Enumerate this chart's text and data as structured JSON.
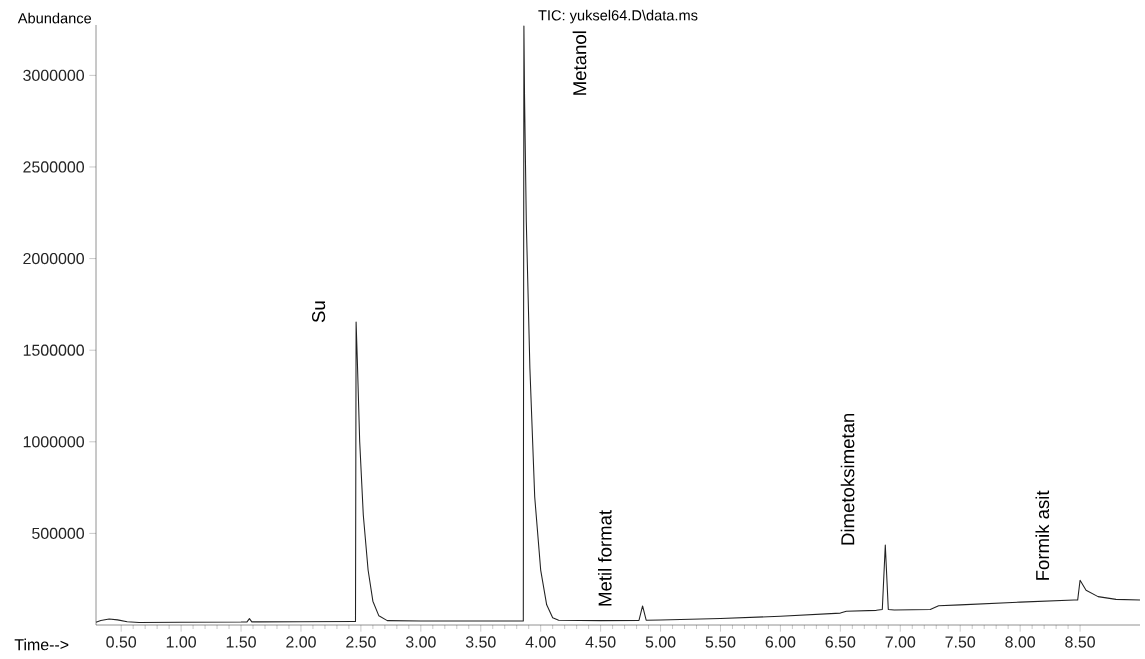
{
  "chart_data": {
    "type": "line",
    "title": "TIC: yuksel64.D\\data.ms",
    "xlabel": "Time-->",
    "ylabel": "Abundance",
    "x": [
      0.29,
      0.33,
      0.4,
      0.47,
      0.55,
      0.65,
      1.0,
      1.5,
      1.55,
      1.57,
      1.59,
      1.65,
      2.0,
      2.45,
      2.455,
      2.46,
      2.47,
      2.49,
      2.52,
      2.56,
      2.6,
      2.65,
      2.72,
      3.0,
      3.5,
      3.85,
      3.855,
      3.86,
      3.865,
      3.88,
      3.91,
      3.95,
      4.0,
      4.05,
      4.1,
      4.15,
      4.5,
      4.82,
      4.85,
      4.88,
      5.0,
      5.5,
      6.0,
      6.5,
      6.55,
      6.8,
      6.85,
      6.875,
      6.9,
      6.95,
      7.25,
      7.32,
      7.5,
      8.0,
      8.45,
      8.48,
      8.5,
      8.55,
      8.65,
      8.8,
      9.0
    ],
    "series": [
      {
        "color": "#222222",
        "values": [
          15000,
          25000,
          33000,
          28000,
          18000,
          14000,
          15000,
          16000,
          17000,
          35000,
          17000,
          17000,
          18000,
          19000,
          19000,
          1654000,
          1450000,
          1000000,
          600000,
          300000,
          130000,
          50000,
          24000,
          22000,
          22000,
          22000,
          22000,
          3270000,
          2900000,
          2200000,
          1400000,
          700000,
          300000,
          110000,
          40000,
          26000,
          24000,
          25000,
          104000,
          26000,
          27000,
          35000,
          48000,
          65000,
          75000,
          80000,
          85000,
          437000,
          85000,
          82000,
          85000,
          105000,
          110000,
          125000,
          136000,
          136000,
          244000,
          190000,
          155000,
          140000,
          136000
        ]
      }
    ],
    "xlim": [
      0.29,
      9.0
    ],
    "ylim": [
      0,
      3275000
    ],
    "xticks": [
      {
        "value": 0.5,
        "label": "0.50"
      },
      {
        "value": 1.0,
        "label": "1.00"
      },
      {
        "value": 1.5,
        "label": "1.50"
      },
      {
        "value": 2.0,
        "label": "2.00"
      },
      {
        "value": 2.5,
        "label": "2.50"
      },
      {
        "value": 3.0,
        "label": "3.00"
      },
      {
        "value": 3.5,
        "label": "3.50"
      },
      {
        "value": 4.0,
        "label": "4.00"
      },
      {
        "value": 4.5,
        "label": "4.50"
      },
      {
        "value": 5.0,
        "label": "5.00"
      },
      {
        "value": 5.5,
        "label": "5.50"
      },
      {
        "value": 6.0,
        "label": "6.00"
      },
      {
        "value": 6.5,
        "label": "6.50"
      },
      {
        "value": 7.0,
        "label": "7.00"
      },
      {
        "value": 7.5,
        "label": "7.50"
      },
      {
        "value": 8.0,
        "label": "8.00"
      },
      {
        "value": 8.5,
        "label": "8.50"
      }
    ],
    "yticks": [
      500000,
      1000000,
      1500000,
      2000000,
      2500000,
      3000000
    ],
    "annotations": [
      {
        "text": "Su",
        "x": 2.46,
        "y": 1654000
      },
      {
        "text": "Metanol",
        "x": 3.86,
        "y": 3270000
      },
      {
        "text": "Metil format",
        "x": 4.85,
        "y": 104000
      },
      {
        "text": "Dimetoksimetan",
        "x": 6.875,
        "y": 437000
      },
      {
        "text": "Formik asit",
        "x": 8.5,
        "y": 244000
      }
    ]
  }
}
